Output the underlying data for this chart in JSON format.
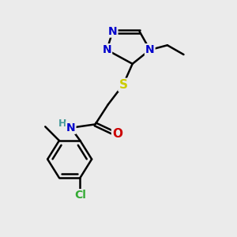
{
  "bg_color": "#ebebeb",
  "atom_colors": {
    "N": "#0000cc",
    "O": "#cc0000",
    "S": "#cccc00",
    "Cl": "#33aa33",
    "H": "#449999"
  },
  "bond_color": "#000000",
  "bond_width": 1.8,
  "font_size": 10
}
